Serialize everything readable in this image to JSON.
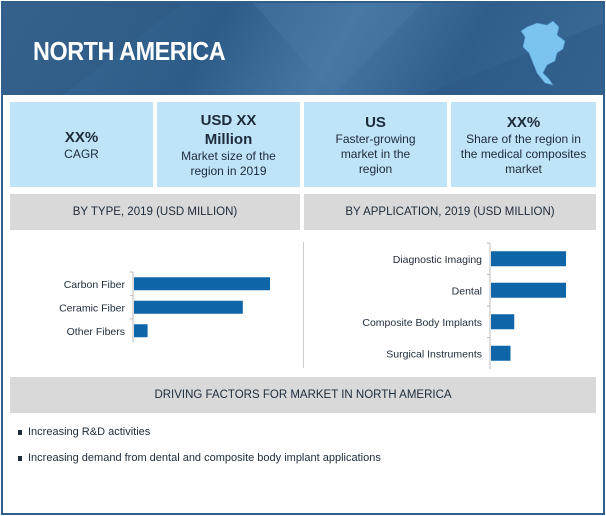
{
  "header": {
    "title": "NORTH AMERICA",
    "map_icon": "north-america-map-icon"
  },
  "stats": [
    {
      "value": "XX%",
      "label": "CAGR"
    },
    {
      "value": "USD XX Million",
      "label": "Market size of the region in 2019"
    },
    {
      "value": "US",
      "label": "Faster-growing market in the region"
    },
    {
      "value": "XX%",
      "label": "Share of the region in the medical composites market"
    }
  ],
  "sections": {
    "by_type": "BY TYPE, 2019 (USD MILLION)",
    "by_application": "BY APPLICATION,  2019 (USD MILLION)",
    "driving_factors": "DRIVING FACTORS FOR MARKET IN NORTH AMERICA"
  },
  "chart_data": [
    {
      "type": "bar",
      "orientation": "horizontal",
      "title": "BY TYPE, 2019 (USD MILLION)",
      "categories": [
        "Carbon Fiber",
        "Ceramic Fiber",
        "Other Fibers"
      ],
      "values": [
        100,
        80,
        10
      ],
      "color": "#0e65a8",
      "xlabel": "",
      "ylabel": "",
      "grid": false
    },
    {
      "type": "bar",
      "orientation": "horizontal",
      "title": "BY APPLICATION,  2019 (USD MILLION)",
      "categories": [
        "Diagnostic Imaging",
        "Dental",
        "Composite Body Implants",
        "Surgical Instruments"
      ],
      "values": [
        100,
        100,
        31,
        26
      ],
      "color": "#0e65a8",
      "xlabel": "",
      "ylabel": "",
      "grid": false
    }
  ],
  "driving_factors": [
    "Increasing R&D activities",
    "Increasing demand from dental and composite body implant applications"
  ]
}
